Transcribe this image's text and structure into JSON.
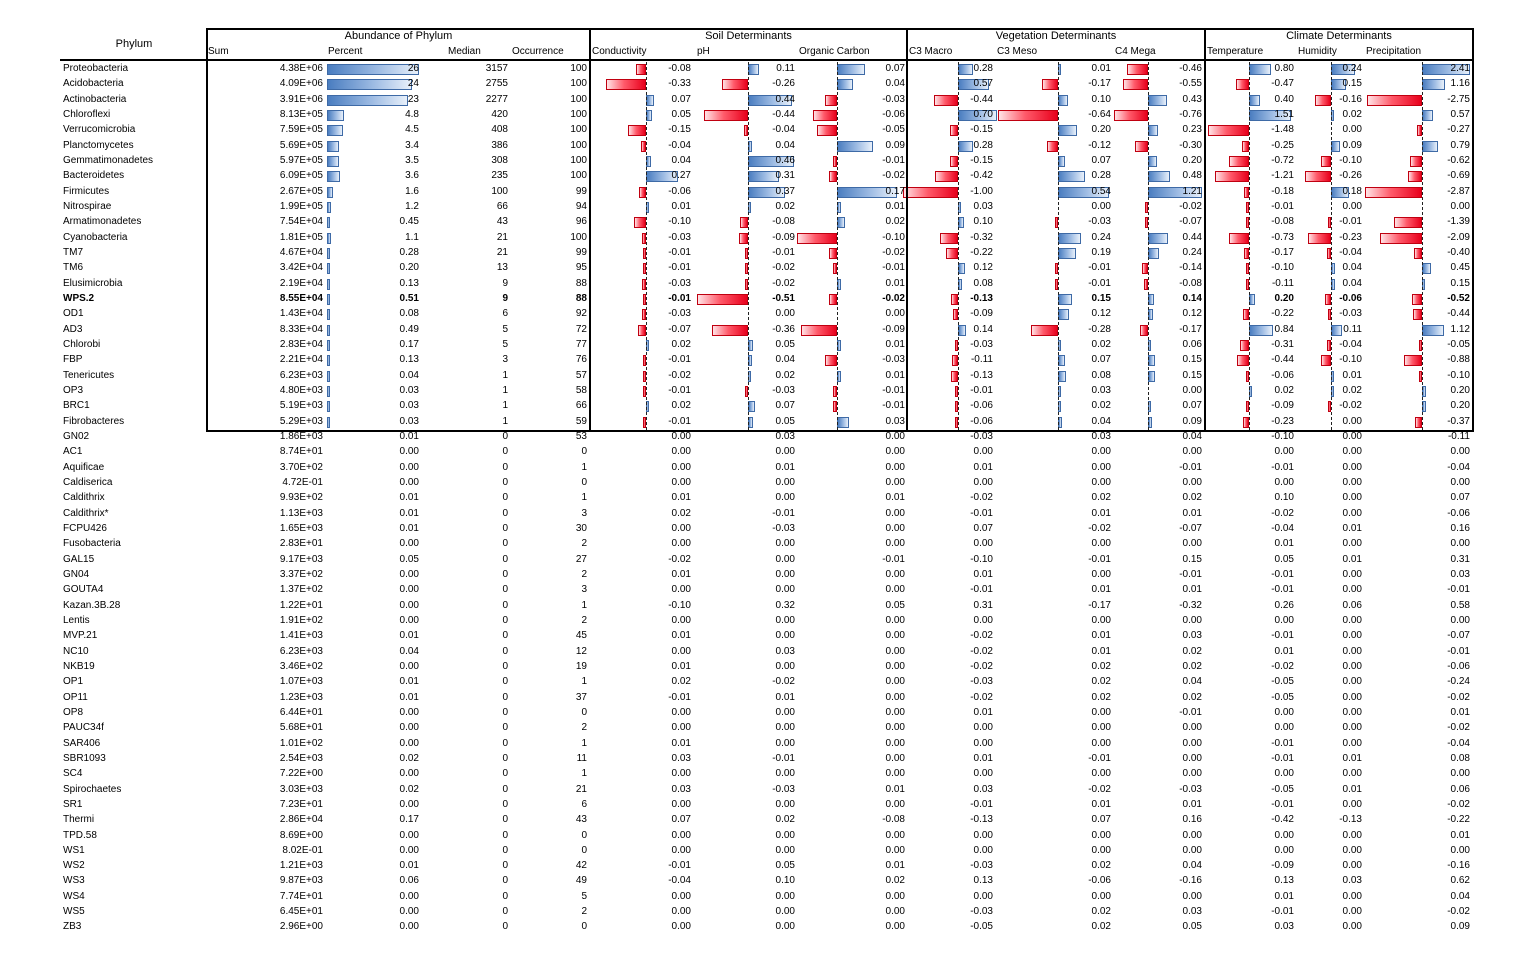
{
  "headers": {
    "phylum": "Phylum",
    "abundance": "Abundance of Phylum",
    "soil": "Soil Determinants",
    "vegetation": "Vegetation Determinants",
    "climate": "Climate Determinants",
    "sum": "Sum",
    "percent": "Percent",
    "median": "Median",
    "occurrence": "Occurrence",
    "conductivity": "Conductivity",
    "ph": "pH",
    "organic_carbon": "Organic Carbon",
    "c3_macro": "C3 Macro",
    "c3_meso": "C3 Meso",
    "c4_mega": "C4 Mega",
    "temperature": "Temperature",
    "humidity": "Humidity",
    "precipitation": "Precipitation"
  },
  "colors": {
    "positive_bar": "#4a7dc0",
    "negative_bar": "#e8001c"
  },
  "rows": [
    [
      "Proteobacteria",
      "4.38E+06",
      "26",
      "3157",
      "100",
      "-0.08",
      "0.11",
      "0.07",
      "0.28",
      "0.01",
      "-0.46",
      "0.80",
      "0.24",
      "2.41"
    ],
    [
      "Acidobacteria",
      "4.09E+06",
      "24",
      "2755",
      "100",
      "-0.33",
      "-0.26",
      "0.04",
      "0.57",
      "-0.17",
      "-0.55",
      "-0.47",
      "0.15",
      "1.16"
    ],
    [
      "Actinobacteria",
      "3.91E+06",
      "23",
      "2277",
      "100",
      "0.07",
      "0.44",
      "-0.03",
      "-0.44",
      "0.10",
      "0.43",
      "0.40",
      "-0.16",
      "-2.75"
    ],
    [
      "Chloroflexi",
      "8.13E+05",
      "4.8",
      "420",
      "100",
      "0.05",
      "-0.44",
      "-0.06",
      "0.70",
      "-0.64",
      "-0.76",
      "1.51",
      "0.02",
      "0.57"
    ],
    [
      "Verrucomicrobia",
      "7.59E+05",
      "4.5",
      "408",
      "100",
      "-0.15",
      "-0.04",
      "-0.05",
      "-0.15",
      "0.20",
      "0.23",
      "-1.48",
      "0.00",
      "-0.27"
    ],
    [
      "Planctomycetes",
      "5.69E+05",
      "3.4",
      "386",
      "100",
      "-0.04",
      "0.04",
      "0.09",
      "0.28",
      "-0.12",
      "-0.30",
      "-0.25",
      "0.09",
      "0.79"
    ],
    [
      "Gemmatimonadetes",
      "5.97E+05",
      "3.5",
      "308",
      "100",
      "0.04",
      "0.46",
      "-0.01",
      "-0.15",
      "0.07",
      "0.20",
      "-0.72",
      "-0.10",
      "-0.62"
    ],
    [
      "Bacteroidetes",
      "6.09E+05",
      "3.6",
      "235",
      "100",
      "0.27",
      "0.31",
      "-0.02",
      "-0.42",
      "0.28",
      "0.48",
      "-1.21",
      "-0.26",
      "-0.69"
    ],
    [
      "Firmicutes",
      "2.67E+05",
      "1.6",
      "100",
      "99",
      "-0.06",
      "0.37",
      "0.17",
      "-1.00",
      "0.54",
      "1.21",
      "-0.18",
      "0.18",
      "-2.87"
    ],
    [
      "Nitrospirae",
      "1.99E+05",
      "1.2",
      "66",
      "94",
      "0.01",
      "0.02",
      "0.01",
      "0.03",
      "0.00",
      "-0.02",
      "-0.01",
      "0.00",
      "0.00"
    ],
    [
      "Armatimonadetes",
      "7.54E+04",
      "0.45",
      "43",
      "96",
      "-0.10",
      "-0.08",
      "0.02",
      "0.10",
      "-0.03",
      "-0.07",
      "-0.08",
      "-0.01",
      "-1.39"
    ],
    [
      "Cyanobacteria",
      "1.81E+05",
      "1.1",
      "21",
      "100",
      "-0.03",
      "-0.09",
      "-0.10",
      "-0.32",
      "0.24",
      "0.44",
      "-0.73",
      "-0.23",
      "-2.09"
    ],
    [
      "TM7",
      "4.67E+04",
      "0.28",
      "21",
      "99",
      "-0.01",
      "-0.01",
      "-0.02",
      "-0.22",
      "0.19",
      "0.24",
      "-0.17",
      "-0.04",
      "-0.40"
    ],
    [
      "TM6",
      "3.42E+04",
      "0.20",
      "13",
      "95",
      "-0.01",
      "-0.02",
      "-0.01",
      "0.12",
      "-0.01",
      "-0.14",
      "-0.10",
      "0.04",
      "0.45"
    ],
    [
      "Elusimicrobia",
      "2.19E+04",
      "0.13",
      "9",
      "88",
      "-0.03",
      "-0.02",
      "0.01",
      "0.08",
      "-0.01",
      "-0.08",
      "-0.11",
      "0.04",
      "0.15"
    ],
    [
      "WPS.2",
      "8.55E+04",
      "0.51",
      "9",
      "88",
      "-0.01",
      "-0.51",
      "-0.02",
      "-0.13",
      "0.15",
      "0.14",
      "0.20",
      "-0.06",
      "-0.52"
    ],
    [
      "OD1",
      "1.43E+04",
      "0.08",
      "6",
      "92",
      "-0.03",
      "0.00",
      "0.00",
      "-0.09",
      "0.12",
      "0.12",
      "-0.22",
      "-0.03",
      "-0.44"
    ],
    [
      "AD3",
      "8.33E+04",
      "0.49",
      "5",
      "72",
      "-0.07",
      "-0.36",
      "-0.09",
      "0.14",
      "-0.28",
      "-0.17",
      "0.84",
      "0.11",
      "1.12"
    ],
    [
      "Chlorobi",
      "2.83E+04",
      "0.17",
      "5",
      "77",
      "0.02",
      "0.05",
      "0.01",
      "-0.03",
      "0.02",
      "0.06",
      "-0.31",
      "-0.04",
      "-0.05"
    ],
    [
      "FBP",
      "2.21E+04",
      "0.13",
      "3",
      "76",
      "-0.01",
      "0.04",
      "-0.03",
      "-0.11",
      "0.07",
      "0.15",
      "-0.44",
      "-0.10",
      "-0.88"
    ],
    [
      "Tenericutes",
      "6.23E+03",
      "0.04",
      "1",
      "57",
      "-0.02",
      "0.02",
      "0.01",
      "-0.13",
      "0.08",
      "0.15",
      "-0.06",
      "0.01",
      "-0.10"
    ],
    [
      "OP3",
      "4.80E+03",
      "0.03",
      "1",
      "58",
      "-0.01",
      "-0.03",
      "-0.01",
      "-0.01",
      "0.03",
      "0.00",
      "0.02",
      "0.02",
      "0.20"
    ],
    [
      "BRC1",
      "5.19E+03",
      "0.03",
      "1",
      "66",
      "0.02",
      "0.07",
      "-0.01",
      "-0.06",
      "0.02",
      "0.07",
      "-0.09",
      "-0.02",
      "0.20"
    ],
    [
      "Fibrobacteres",
      "5.29E+03",
      "0.03",
      "1",
      "59",
      "-0.01",
      "0.05",
      "0.03",
      "-0.06",
      "0.04",
      "0.09",
      "-0.23",
      "0.00",
      "-0.37"
    ],
    [
      "GN02",
      "1.86E+03",
      "0.01",
      "0",
      "53",
      "0.00",
      "0.03",
      "0.00",
      "-0.03",
      "0.03",
      "0.04",
      "-0.10",
      "0.00",
      "-0.11"
    ],
    [
      "AC1",
      "8.74E+01",
      "0.00",
      "0",
      "0",
      "0.00",
      "0.00",
      "0.00",
      "0.00",
      "0.00",
      "0.00",
      "0.00",
      "0.00",
      "0.00"
    ],
    [
      "Aquificae",
      "3.70E+02",
      "0.00",
      "0",
      "1",
      "0.00",
      "0.01",
      "0.00",
      "0.01",
      "0.00",
      "-0.01",
      "-0.01",
      "0.00",
      "-0.04"
    ],
    [
      "Caldiserica",
      "4.72E-01",
      "0.00",
      "0",
      "0",
      "0.00",
      "0.00",
      "0.00",
      "0.00",
      "0.00",
      "0.00",
      "0.00",
      "0.00",
      "0.00"
    ],
    [
      "Caldithrix",
      "9.93E+02",
      "0.01",
      "0",
      "1",
      "0.01",
      "0.00",
      "0.01",
      "-0.02",
      "0.02",
      "0.02",
      "0.10",
      "0.00",
      "0.07"
    ],
    [
      "Caldithrix*",
      "1.13E+03",
      "0.01",
      "0",
      "3",
      "0.02",
      "-0.01",
      "0.00",
      "-0.01",
      "0.01",
      "0.01",
      "-0.02",
      "0.00",
      "-0.06"
    ],
    [
      "FCPU426",
      "1.65E+03",
      "0.01",
      "0",
      "30",
      "0.00",
      "-0.03",
      "0.00",
      "0.07",
      "-0.02",
      "-0.07",
      "-0.04",
      "0.01",
      "0.16"
    ],
    [
      "Fusobacteria",
      "2.83E+01",
      "0.00",
      "0",
      "2",
      "0.00",
      "0.00",
      "0.00",
      "0.00",
      "0.00",
      "0.00",
      "0.01",
      "0.00",
      "0.00"
    ],
    [
      "GAL15",
      "9.17E+03",
      "0.05",
      "0",
      "27",
      "-0.02",
      "0.00",
      "-0.01",
      "-0.10",
      "-0.01",
      "0.15",
      "0.05",
      "0.01",
      "0.31"
    ],
    [
      "GN04",
      "3.37E+02",
      "0.00",
      "0",
      "2",
      "0.01",
      "0.00",
      "0.00",
      "0.01",
      "0.00",
      "-0.01",
      "-0.01",
      "0.00",
      "0.03"
    ],
    [
      "GOUTA4",
      "1.37E+02",
      "0.00",
      "0",
      "3",
      "0.00",
      "0.00",
      "0.00",
      "-0.01",
      "0.01",
      "0.01",
      "-0.01",
      "0.00",
      "-0.01"
    ],
    [
      "Kazan.3B.28",
      "1.22E+01",
      "0.00",
      "0",
      "1",
      "-0.10",
      "0.32",
      "0.05",
      "0.31",
      "-0.17",
      "-0.32",
      "0.26",
      "0.06",
      "0.58"
    ],
    [
      "Lentis",
      "1.91E+02",
      "0.00",
      "0",
      "2",
      "0.00",
      "0.00",
      "0.00",
      "0.00",
      "0.00",
      "0.00",
      "0.00",
      "0.00",
      "0.00"
    ],
    [
      "MVP.21",
      "1.41E+03",
      "0.01",
      "0",
      "45",
      "0.01",
      "0.00",
      "0.00",
      "-0.02",
      "0.01",
      "0.03",
      "-0.01",
      "0.00",
      "-0.07"
    ],
    [
      "NC10",
      "6.23E+03",
      "0.04",
      "0",
      "12",
      "0.00",
      "0.03",
      "0.00",
      "-0.02",
      "0.01",
      "0.02",
      "0.01",
      "0.00",
      "-0.01"
    ],
    [
      "NKB19",
      "3.46E+02",
      "0.00",
      "0",
      "19",
      "0.01",
      "0.00",
      "0.00",
      "-0.02",
      "0.02",
      "0.02",
      "-0.02",
      "0.00",
      "-0.06"
    ],
    [
      "OP1",
      "1.07E+03",
      "0.01",
      "0",
      "1",
      "0.02",
      "-0.02",
      "0.00",
      "-0.03",
      "0.02",
      "0.04",
      "-0.05",
      "0.00",
      "-0.24"
    ],
    [
      "OP11",
      "1.23E+03",
      "0.01",
      "0",
      "37",
      "-0.01",
      "0.01",
      "0.00",
      "-0.02",
      "0.02",
      "0.02",
      "-0.05",
      "0.00",
      "-0.02"
    ],
    [
      "OP8",
      "6.44E+01",
      "0.00",
      "0",
      "0",
      "0.00",
      "0.00",
      "0.00",
      "0.01",
      "0.00",
      "-0.01",
      "0.00",
      "0.00",
      "0.01"
    ],
    [
      "PAUC34f",
      "5.68E+01",
      "0.00",
      "0",
      "2",
      "0.00",
      "0.00",
      "0.00",
      "0.00",
      "0.00",
      "0.00",
      "0.00",
      "0.00",
      "-0.02"
    ],
    [
      "SAR406",
      "1.01E+02",
      "0.00",
      "0",
      "1",
      "0.01",
      "0.00",
      "0.00",
      "0.00",
      "0.00",
      "0.00",
      "-0.01",
      "0.00",
      "-0.04"
    ],
    [
      "SBR1093",
      "2.54E+03",
      "0.02",
      "0",
      "11",
      "0.03",
      "-0.01",
      "0.00",
      "0.01",
      "-0.01",
      "0.00",
      "-0.01",
      "0.01",
      "0.08"
    ],
    [
      "SC4",
      "7.22E+00",
      "0.00",
      "0",
      "1",
      "0.00",
      "0.00",
      "0.00",
      "0.00",
      "0.00",
      "0.00",
      "0.00",
      "0.00",
      "0.00"
    ],
    [
      "Spirochaetes",
      "3.03E+03",
      "0.02",
      "0",
      "21",
      "0.03",
      "-0.03",
      "0.01",
      "0.03",
      "-0.02",
      "-0.03",
      "-0.05",
      "0.01",
      "0.06"
    ],
    [
      "SR1",
      "7.23E+01",
      "0.00",
      "0",
      "6",
      "0.00",
      "0.00",
      "0.00",
      "-0.01",
      "0.01",
      "0.01",
      "-0.01",
      "0.00",
      "-0.02"
    ],
    [
      "Thermi",
      "2.86E+04",
      "0.17",
      "0",
      "43",
      "0.07",
      "0.02",
      "-0.08",
      "-0.13",
      "0.07",
      "0.16",
      "-0.42",
      "-0.13",
      "-0.22"
    ],
    [
      "TPD.58",
      "8.69E+00",
      "0.00",
      "0",
      "0",
      "0.00",
      "0.00",
      "0.00",
      "0.00",
      "0.00",
      "0.00",
      "0.00",
      "0.00",
      "0.01"
    ],
    [
      "WS1",
      "8.02E-01",
      "0.00",
      "0",
      "0",
      "0.00",
      "0.00",
      "0.00",
      "0.00",
      "0.00",
      "0.00",
      "0.00",
      "0.00",
      "0.00"
    ],
    [
      "WS2",
      "1.21E+03",
      "0.01",
      "0",
      "42",
      "-0.01",
      "0.05",
      "0.01",
      "-0.03",
      "0.02",
      "0.04",
      "-0.09",
      "0.00",
      "-0.16"
    ],
    [
      "WS3",
      "9.87E+03",
      "0.06",
      "0",
      "49",
      "-0.04",
      "0.10",
      "0.02",
      "0.13",
      "-0.06",
      "-0.16",
      "0.13",
      "0.03",
      "0.62"
    ],
    [
      "WS4",
      "7.74E+01",
      "0.00",
      "0",
      "5",
      "0.00",
      "0.00",
      "0.00",
      "0.00",
      "0.00",
      "0.00",
      "0.01",
      "0.00",
      "0.04"
    ],
    [
      "WS5",
      "6.45E+01",
      "0.00",
      "0",
      "2",
      "0.00",
      "0.00",
      "0.00",
      "-0.03",
      "0.02",
      "0.03",
      "-0.01",
      "0.00",
      "-0.02"
    ],
    [
      "ZB3",
      "2.96E+00",
      "0.00",
      "0",
      "0",
      "0.00",
      "0.00",
      "0.00",
      "-0.05",
      "0.02",
      "0.05",
      "0.03",
      "0.00",
      "0.09"
    ]
  ],
  "bar_rows_count": 24,
  "bold_row": "WPS.2"
}
